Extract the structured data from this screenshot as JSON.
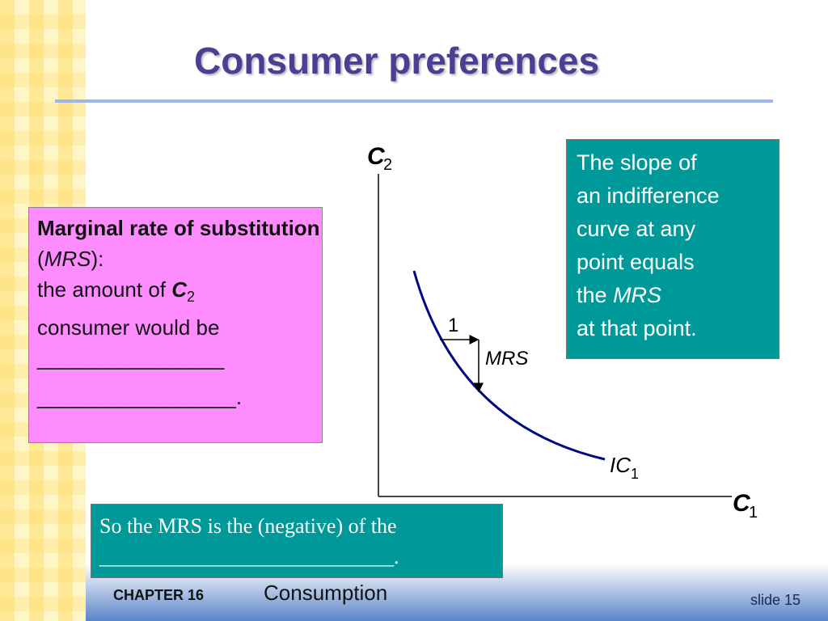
{
  "title": "Consumer preferences",
  "left_box": {
    "term": "Marginal rate of substitution",
    "open": "(",
    "abbr": "MRS",
    "close": "):",
    "line3": "the amount of",
    "var": "C",
    "var_sub": "2",
    "line4": "consumer would be",
    "blank1": "________________",
    "blank2": "_________________."
  },
  "diagram": {
    "y_axis": "C",
    "y_axis_sub": "2",
    "x_axis": "C",
    "x_axis_sub": "1",
    "curve": "IC",
    "curve_sub": "1",
    "run": "1",
    "rise": "MRS"
  },
  "right_box": {
    "lines": [
      "The slope of",
      "an indifference",
      "curve at any",
      "point equals"
    ],
    "the": "the",
    "mrs": "MRS",
    "last": "at that point."
  },
  "bottom_box": {
    "line1": "So the MRS is the (negative) of the",
    "line2": "____________________________."
  },
  "footer": {
    "chapter": "CHAPTER 16",
    "topic": "Consumption",
    "slide": "slide 15"
  }
}
